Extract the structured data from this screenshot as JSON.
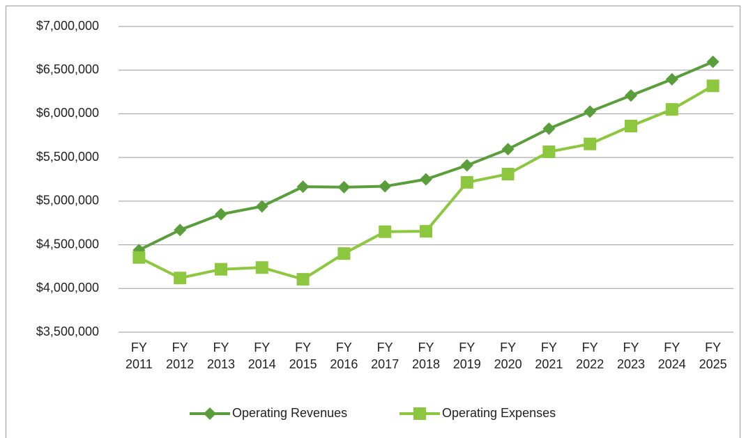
{
  "chart_data": {
    "type": "line",
    "categories": [
      "FY 2011",
      "FY 2012",
      "FY 2013",
      "FY 2014",
      "FY 2015",
      "FY 2016",
      "FY 2017",
      "FY 2018",
      "FY 2019",
      "FY 2020",
      "FY 2021",
      "FY 2022",
      "FY 2023",
      "FY 2024",
      "FY 2025"
    ],
    "series": [
      {
        "name": "Operating Revenues",
        "color": "#5a9e3c",
        "marker": "diamond",
        "values": [
          4440000,
          4670000,
          4850000,
          4940000,
          5165000,
          5160000,
          5170000,
          5250000,
          5410000,
          5595000,
          5830000,
          6025000,
          6210000,
          6395000,
          6595000
        ]
      },
      {
        "name": "Operating Expenses",
        "color": "#8dc63f",
        "marker": "square",
        "values": [
          4355000,
          4120000,
          4220000,
          4240000,
          4105000,
          4400000,
          4650000,
          4655000,
          5215000,
          5310000,
          5565000,
          5655000,
          5860000,
          6050000,
          6320000
        ]
      }
    ],
    "ylim": [
      3500000,
      7000000
    ],
    "yticks": [
      {
        "value": 3500000,
        "label": "$3,500,000"
      },
      {
        "value": 4000000,
        "label": "$4,000,000"
      },
      {
        "value": 4500000,
        "label": "$4,500,000"
      },
      {
        "value": 5000000,
        "label": "$5,000,000"
      },
      {
        "value": 5500000,
        "label": "$5,500,000"
      },
      {
        "value": 6000000,
        "label": "$6,000,000"
      },
      {
        "value": 6500000,
        "label": "$6,500,000"
      },
      {
        "value": 7000000,
        "label": "$7,000,000"
      }
    ],
    "grid": true,
    "legend": "bottom"
  }
}
